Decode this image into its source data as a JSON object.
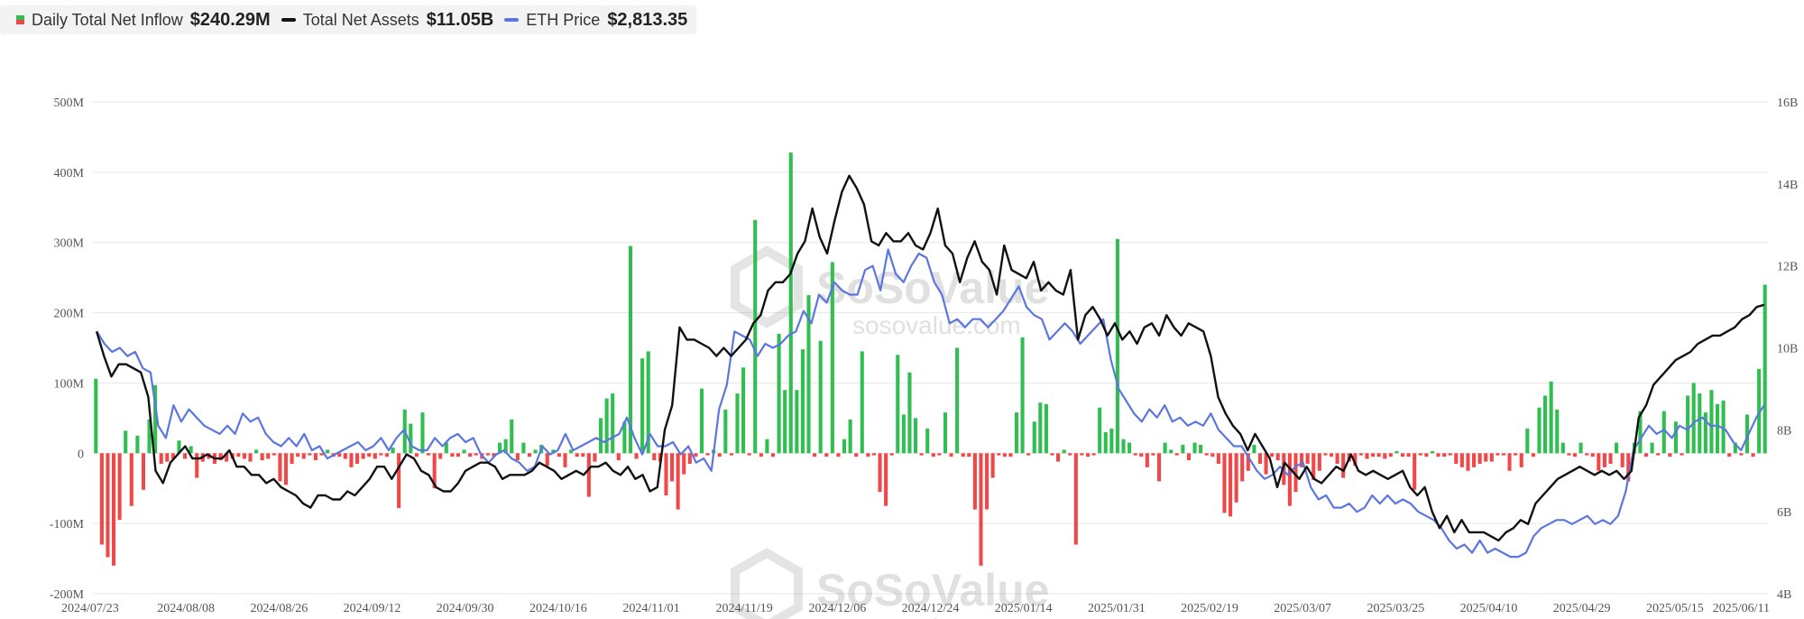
{
  "legend": {
    "inflow": {
      "label": "Daily Total Net Inflow",
      "value": "$240.29M",
      "icon": "bar-legend-icon"
    },
    "assets": {
      "label": "Total Net Assets",
      "value": "$11.05B",
      "icon": "line-legend-icon"
    },
    "eth": {
      "label": "ETH Price",
      "value": "$2,813.35",
      "icon": "line-legend-icon"
    }
  },
  "watermark": {
    "brand": "SoSoValue",
    "url": "sosovalue.com"
  },
  "colors": {
    "positive": "#2fbe4f",
    "negative": "#f04848",
    "assets_line": "#111111",
    "eth_line": "#5b76e0",
    "grid": "#e6e6e6",
    "axis_text": "#555555"
  },
  "chart_data": {
    "type": "bar",
    "left_axis": {
      "ticks": [
        "500M",
        "400M",
        "300M",
        "200M",
        "100M",
        "0",
        "-100M",
        "-200M"
      ],
      "range": [
        -200,
        500
      ],
      "unit": "M"
    },
    "right_axis": {
      "ticks": [
        "16B",
        "14B",
        "12B",
        "10B",
        "8B",
        "6B",
        "4B"
      ],
      "range": [
        4,
        16
      ],
      "unit": "B"
    },
    "x_ticks": [
      "2024/07/23",
      "2024/08/08",
      "2024/08/26",
      "2024/09/12",
      "2024/09/30",
      "2024/10/16",
      "2024/11/01",
      "2024/11/19",
      "2024/12/06",
      "2024/12/24",
      "2025/01/14",
      "2025/01/31",
      "2025/02/19",
      "2025/03/07",
      "2025/03/25",
      "2025/04/10",
      "2025/04/29",
      "2025/05/15",
      "2025/06/11"
    ],
    "grid": true,
    "series": [
      {
        "name": "Daily Total Net Inflow",
        "type": "bar",
        "axis": "left",
        "values": [
          106,
          -130,
          -148,
          -160,
          -95,
          32,
          -75,
          25,
          -52,
          48,
          97,
          -15,
          -12,
          -8,
          18,
          -8,
          10,
          -35,
          -12,
          -8,
          -15,
          -10,
          -12,
          -8,
          -5,
          -8,
          -12,
          5,
          -10,
          -8,
          -3,
          -40,
          -45,
          -15,
          -5,
          -8,
          -3,
          -10,
          -3,
          5,
          -5,
          -5,
          -8,
          -20,
          -15,
          -8,
          -5,
          -8,
          -3,
          -5,
          8,
          -78,
          62,
          42,
          -5,
          58,
          -3,
          -50,
          -8,
          15,
          -5,
          -5,
          5,
          -5,
          -3,
          -8,
          -3,
          -5,
          15,
          20,
          48,
          -10,
          15,
          -5,
          5,
          12,
          -18,
          5,
          -5,
          -20,
          5,
          -5,
          -5,
          -62,
          -12,
          50,
          78,
          85,
          -10,
          45,
          295,
          -8,
          135,
          145,
          -10,
          -12,
          -60,
          -40,
          -80,
          -30,
          -15,
          -5,
          92,
          -3,
          5,
          -5,
          62,
          -3,
          85,
          122,
          -3,
          332,
          -5,
          20,
          -5,
          170,
          90,
          428,
          90,
          148,
          225,
          -5,
          160,
          -5,
          272,
          -5,
          20,
          48,
          -5,
          145,
          -5,
          -3,
          -55,
          -75,
          -3,
          140,
          55,
          115,
          50,
          -3,
          35,
          -5,
          -3,
          58,
          -5,
          150,
          -5,
          -5,
          -80,
          -160,
          -80,
          -35,
          -3,
          -5,
          -5,
          58,
          165,
          -3,
          45,
          72,
          70,
          -3,
          -12,
          5,
          -3,
          -130,
          -3,
          -5,
          -3,
          65,
          30,
          35,
          305,
          20,
          15,
          -3,
          -5,
          -20,
          -3,
          -40,
          15,
          5,
          -3,
          12,
          -10,
          15,
          12,
          -3,
          -5,
          -15,
          -85,
          -90,
          -70,
          -40,
          -25,
          12,
          -15,
          -30,
          -5,
          -10,
          -45,
          -75,
          -55,
          -20,
          -15,
          -38,
          -25,
          -3,
          -5,
          -15,
          -35,
          -12,
          -18,
          -3,
          -8,
          -5,
          -5,
          -8,
          -5,
          3,
          -5,
          -5,
          -52,
          -3,
          -5,
          3,
          -5,
          -5,
          -3,
          -15,
          -20,
          -25,
          -20,
          -15,
          -12,
          -12,
          -3,
          -3,
          -25,
          -3,
          -20,
          35,
          -5,
          65,
          82,
          102,
          62,
          15,
          -3,
          -5,
          15,
          -3,
          -5,
          -25,
          -20,
          -15,
          15,
          -20,
          -40,
          15,
          60,
          -5,
          15,
          -3,
          60,
          -5,
          45,
          -3,
          82,
          100,
          85,
          58,
          90,
          70,
          75,
          -5,
          15,
          -3,
          55,
          -5,
          120,
          240
        ]
      },
      {
        "name": "Total Net Assets",
        "type": "line",
        "axis": "right",
        "values": [
          10.4,
          9.8,
          9.3,
          9.6,
          9.6,
          9.5,
          9.4,
          8.8,
          7.0,
          6.7,
          7.2,
          7.4,
          7.6,
          7.3,
          7.3,
          7.4,
          7.3,
          7.3,
          7.5,
          7.1,
          7.1,
          6.9,
          6.9,
          6.7,
          6.8,
          6.6,
          6.5,
          6.4,
          6.2,
          6.1,
          6.4,
          6.4,
          6.3,
          6.3,
          6.5,
          6.4,
          6.6,
          6.8,
          7.1,
          7.1,
          6.8,
          7.1,
          7.4,
          7.3,
          7.0,
          6.9,
          6.6,
          6.5,
          6.5,
          6.7,
          7.0,
          7.1,
          7.2,
          7.2,
          7.1,
          6.8,
          6.9,
          6.9,
          6.9,
          7.0,
          7.2,
          7.1,
          7.0,
          6.8,
          6.9,
          7.0,
          6.9,
          7.1,
          7.1,
          7.2,
          7.0,
          6.9,
          7.1,
          6.8,
          6.9,
          6.5,
          6.6,
          8.0,
          8.6,
          10.5,
          10.2,
          10.2,
          10.1,
          10.0,
          9.8,
          10.0,
          9.8,
          10.0,
          10.2,
          10.6,
          10.8,
          11.4,
          11.6,
          11.6,
          11.8,
          12.3,
          12.6,
          13.4,
          12.7,
          12.3,
          13.1,
          13.8,
          14.2,
          13.9,
          13.5,
          12.6,
          12.5,
          12.8,
          12.6,
          12.6,
          12.8,
          12.5,
          12.4,
          12.8,
          13.4,
          12.5,
          12.3,
          11.6,
          12.2,
          12.6,
          12.1,
          11.9,
          11.3,
          12.5,
          11.9,
          11.8,
          11.7,
          12.1,
          11.4,
          11.6,
          11.4,
          11.3,
          11.9,
          10.2,
          10.8,
          11.0,
          10.7,
          10.3,
          10.6,
          10.2,
          10.4,
          10.1,
          10.5,
          10.6,
          10.3,
          10.8,
          10.5,
          10.3,
          10.6,
          10.5,
          10.4,
          9.8,
          8.8,
          8.4,
          8.1,
          7.9,
          7.5,
          7.9,
          7.6,
          7.3,
          6.6,
          7.2,
          7.0,
          6.8,
          7.1,
          6.8,
          6.7,
          6.9,
          7.1,
          7.0,
          7.4,
          7.0,
          6.9,
          7.0,
          6.9,
          6.8,
          6.9,
          7.0,
          6.6,
          6.4,
          6.6,
          6.0,
          5.6,
          5.9,
          5.5,
          5.8,
          5.5,
          5.5,
          5.5,
          5.4,
          5.3,
          5.5,
          5.6,
          5.8,
          5.7,
          6.2,
          6.4,
          6.6,
          6.8,
          6.9,
          7.0,
          7.1,
          7.0,
          6.9,
          7.0,
          6.9,
          7.0,
          6.8,
          7.0,
          8.3,
          8.6,
          9.1,
          9.3,
          9.5,
          9.7,
          9.8,
          9.9,
          10.1,
          10.2,
          10.3,
          10.3,
          10.4,
          10.5,
          10.7,
          10.8,
          11.0,
          11.05
        ]
      },
      {
        "name": "ETH Price",
        "type": "line",
        "axis": "right",
        "values": [
          10.4,
          10.1,
          9.9,
          10.0,
          9.8,
          9.9,
          9.5,
          9.4,
          8.1,
          7.8,
          8.6,
          8.2,
          8.5,
          8.3,
          8.1,
          8.0,
          7.9,
          8.1,
          7.9,
          8.4,
          8.2,
          8.3,
          7.9,
          7.7,
          7.6,
          7.8,
          7.6,
          7.9,
          7.5,
          7.6,
          7.3,
          7.4,
          7.5,
          7.6,
          7.7,
          7.5,
          7.6,
          7.8,
          7.5,
          7.8,
          8.0,
          7.6,
          7.5,
          7.5,
          7.8,
          7.6,
          7.8,
          7.9,
          7.7,
          7.8,
          7.4,
          7.2,
          7.4,
          7.5,
          7.3,
          7.2,
          7.0,
          7.1,
          7.6,
          7.4,
          7.5,
          7.9,
          7.5,
          7.6,
          7.7,
          7.8,
          7.7,
          7.8,
          7.9,
          8.3,
          7.8,
          7.4,
          7.9,
          7.6,
          7.6,
          7.7,
          7.4,
          7.6,
          7.2,
          7.3,
          7.0,
          8.5,
          9.1,
          10.4,
          10.3,
          10.2,
          9.8,
          10.1,
          10.0,
          10.1,
          10.3,
          10.4,
          10.9,
          10.6,
          11.3,
          11.1,
          11.6,
          11.4,
          11.3,
          11.3,
          11.9,
          12.0,
          11.4,
          12.4,
          11.8,
          11.6,
          12.0,
          12.3,
          12.2,
          11.6,
          11.3,
          10.6,
          10.7,
          10.5,
          10.7,
          10.7,
          10.5,
          10.7,
          10.9,
          11.2,
          11.5,
          11.0,
          10.8,
          10.7,
          10.2,
          10.4,
          10.6,
          10.4,
          10.1,
          10.3,
          10.5,
          10.7,
          9.7,
          9.0,
          8.7,
          8.4,
          8.2,
          8.5,
          8.3,
          8.6,
          8.2,
          8.3,
          8.1,
          8.2,
          8.1,
          8.4,
          8.0,
          7.8,
          7.6,
          7.6,
          7.3,
          7.0,
          6.8,
          6.9,
          7.1,
          6.9,
          7.1,
          7.2,
          6.6,
          6.3,
          6.4,
          6.1,
          6.1,
          6.2,
          6.0,
          6.1,
          6.4,
          6.2,
          6.4,
          6.2,
          6.3,
          6.2,
          6.0,
          5.9,
          5.8,
          5.6,
          5.3,
          5.1,
          5.2,
          5.0,
          5.3,
          5.0,
          5.1,
          5.0,
          4.9,
          4.9,
          5.0,
          5.4,
          5.6,
          5.7,
          5.8,
          5.8,
          5.7,
          5.8,
          5.9,
          5.7,
          5.8,
          5.7,
          5.9,
          6.5,
          7.5,
          7.8,
          8.1,
          7.9,
          8.0,
          7.8,
          8.1,
          8.0,
          8.2,
          8.3,
          8.1,
          8.1,
          8.0,
          7.7,
          7.5,
          7.9,
          8.3,
          8.6
        ]
      }
    ]
  }
}
